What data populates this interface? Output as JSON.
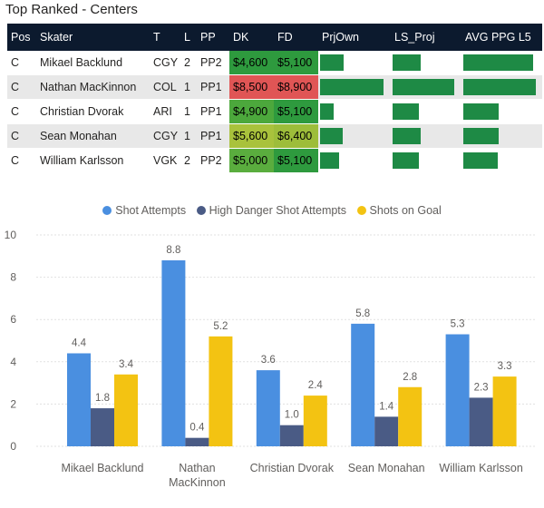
{
  "report": {
    "title": "Top Ranked - Centers"
  },
  "table": {
    "columns": [
      "Pos",
      "Skater",
      "T",
      "L",
      "PP",
      "DK",
      "FD",
      "PrjOwn",
      "LS_Proj",
      "AVG PPG L5"
    ],
    "rows": [
      {
        "pos": "C",
        "skater": "Mikael Backlund",
        "team": "CGY",
        "line": "2",
        "pp": "PP2",
        "dk": "$4,600",
        "fd": "$5,100",
        "dk_color": "#2e9a3e",
        "fd_color": "#2e9a3e",
        "prjown": 0.37,
        "ls_proj": 0.46,
        "avg_ppg": 0.96
      },
      {
        "pos": "C",
        "skater": "Nathan MacKinnon",
        "team": "COL",
        "line": "1",
        "pp": "PP1",
        "dk": "$8,500",
        "fd": "$8,900",
        "dk_color": "#e05555",
        "fd_color": "#e05555",
        "prjown": 1.0,
        "ls_proj": 1.0,
        "avg_ppg": 1.0
      },
      {
        "pos": "C",
        "skater": "Christian Dvorak",
        "team": "ARI",
        "line": "1",
        "pp": "PP1",
        "dk": "$4,900",
        "fd": "$5,100",
        "dk_color": "#4ca83c",
        "fd_color": "#2e9a3e",
        "prjown": 0.22,
        "ls_proj": 0.43,
        "avg_ppg": 0.49
      },
      {
        "pos": "C",
        "skater": "Sean Monahan",
        "team": "CGY",
        "line": "1",
        "pp": "PP1",
        "dk": "$5,600",
        "fd": "$6,400",
        "dk_color": "#a9c23c",
        "fd_color": "#9dbd3a",
        "prjown": 0.36,
        "ls_proj": 0.45,
        "avg_ppg": 0.49
      },
      {
        "pos": "C",
        "skater": "William Karlsson",
        "team": "VGK",
        "line": "2",
        "pp": "PP2",
        "dk": "$5,000",
        "fd": "$5,100",
        "dk_color": "#5aad3e",
        "fd_color": "#2e9a3e",
        "prjown": 0.3,
        "ls_proj": 0.43,
        "avg_ppg": 0.47
      }
    ]
  },
  "colors": {
    "row_alt": "#e8e8e8",
    "header_bg": "#0c1a2e",
    "bar_green": "#1e8a45",
    "shot_attempts": "#4a8fe0",
    "high_danger": "#4a5b85",
    "shots_on_goal": "#f3c312"
  },
  "legend": {
    "shot_attempts": "Shot Attempts",
    "high_danger": "High Danger Shot Attempts",
    "shots_on_goal": "Shots on Goal"
  },
  "chart_data": {
    "type": "bar",
    "title": "",
    "xlabel": "",
    "ylabel": "",
    "ylim": [
      0,
      10
    ],
    "yticks": [
      "0",
      "2",
      "4",
      "6",
      "8",
      "10"
    ],
    "categories": [
      "Mikael Backlund",
      "Nathan MacKinnon",
      "Christian Dvorak",
      "Sean Monahan",
      "William Karlsson"
    ],
    "category_lines": [
      [
        "Mikael Backlund"
      ],
      [
        "Nathan",
        "MacKinnon"
      ],
      [
        "Christian Dvorak"
      ],
      [
        "Sean Monahan"
      ],
      [
        "William Karlsson"
      ]
    ],
    "series": [
      {
        "name": "Shot Attempts",
        "values": [
          4.4,
          8.8,
          3.6,
          5.8,
          5.3
        ],
        "labels": [
          "4.4",
          "8.8",
          "3.6",
          "5.8",
          "5.3"
        ],
        "color": "#4a8fe0"
      },
      {
        "name": "High Danger Shot Attempts",
        "values": [
          1.8,
          0.4,
          1.0,
          1.4,
          2.3
        ],
        "labels": [
          "1.8",
          "0.4",
          "1.0",
          "1.4",
          "2.3"
        ],
        "color": "#4a5b85"
      },
      {
        "name": "Shots on Goal",
        "values": [
          3.4,
          5.2,
          2.4,
          2.8,
          3.3
        ],
        "labels": [
          "3.4",
          "5.2",
          "2.4",
          "2.8",
          "3.3"
        ],
        "color": "#f3c312"
      }
    ],
    "legend_position": "top-center",
    "grid": true
  }
}
